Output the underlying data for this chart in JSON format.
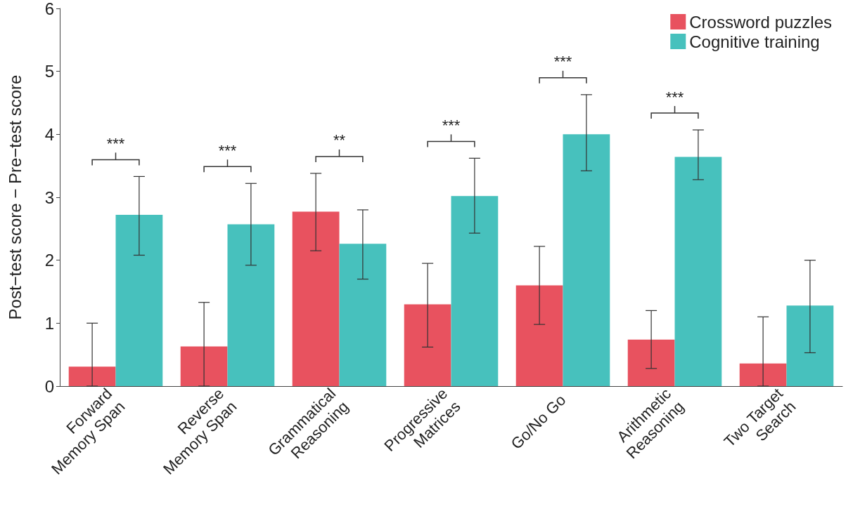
{
  "chart_data": {
    "type": "bar",
    "ylabel": "Post−test score − Pre−test score",
    "categories": [
      "Forward\nMemory Span",
      "Reverse\nMemory Span",
      "Grammatical\nReasoning",
      "Progressive\nMatrices",
      "Go/No Go",
      "Arithmetic\nReasoning",
      "Two Target\nSearch"
    ],
    "series": [
      {
        "name": "Crossword puzzles",
        "color": "#e8525f",
        "values": [
          0.31,
          0.63,
          2.77,
          1.3,
          1.6,
          0.74,
          0.36
        ],
        "errors": [
          [
            0,
            1.0
          ],
          [
            0,
            1.33
          ],
          [
            2.15,
            3.38
          ],
          [
            0.62,
            1.95
          ],
          [
            0.98,
            2.22
          ],
          [
            0.28,
            1.2
          ],
          [
            0,
            1.1
          ]
        ]
      },
      {
        "name": "Cognitive training",
        "color": "#47c1bd",
        "values": [
          2.72,
          2.57,
          2.26,
          3.02,
          4.0,
          3.64,
          1.28
        ],
        "errors": [
          [
            2.08,
            3.33
          ],
          [
            1.92,
            3.22
          ],
          [
            1.7,
            2.8
          ],
          [
            2.43,
            3.62
          ],
          [
            3.42,
            4.63
          ],
          [
            3.28,
            4.07
          ],
          [
            0.53,
            2.0
          ]
        ]
      }
    ],
    "ylim": [
      0,
      6
    ],
    "yticks": [
      0,
      1,
      2,
      3,
      4,
      5,
      6
    ],
    "grid": false,
    "legend": "top right",
    "annotations": [
      "***",
      "***",
      "**",
      "***",
      "***",
      "***"
    ]
  }
}
